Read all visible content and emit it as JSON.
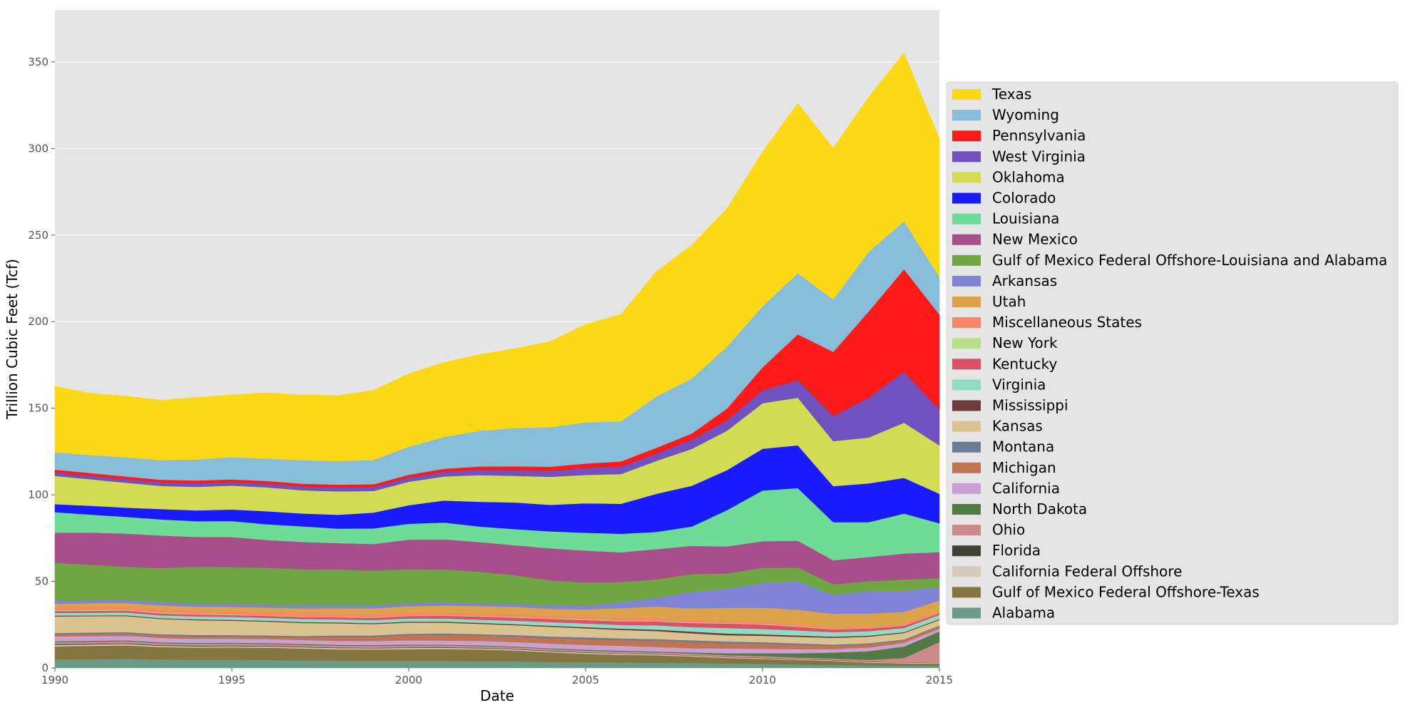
{
  "chart_data": {
    "type": "area",
    "stacked": true,
    "xlabel": "Date",
    "ylabel": "Trillion Cubic Feet (Tcf)",
    "xlim": [
      1990,
      2015
    ],
    "ylim": [
      0,
      380
    ],
    "x_ticks": [
      1990,
      1995,
      2000,
      2005,
      2010,
      2015
    ],
    "y_ticks": [
      0,
      50,
      100,
      150,
      200,
      250,
      300,
      350
    ],
    "grid": true,
    "legend_position": "right",
    "plot_background": "#e5e5e5",
    "legend_background": "#e5e5e5",
    "x": [
      1990,
      1991,
      1992,
      1993,
      1994,
      1995,
      1996,
      1997,
      1998,
      1999,
      2000,
      2001,
      2002,
      2003,
      2004,
      2005,
      2006,
      2007,
      2008,
      2009,
      2010,
      2011,
      2012,
      2013,
      2014,
      2015
    ],
    "series": [
      {
        "name": "Alabama",
        "color": "#6b9a86",
        "values": [
          4.9,
          5.1,
          5.3,
          4.9,
          4.8,
          4.8,
          4.7,
          4.5,
          4.3,
          4.2,
          4.2,
          4.1,
          3.9,
          3.8,
          3.5,
          3.3,
          3.1,
          3.0,
          2.9,
          2.6,
          2.4,
          2.1,
          1.8,
          1.5,
          1.3,
          1.2
        ]
      },
      {
        "name": "Gulf of Mexico Federal Offshore-Texas",
        "color": "#857540",
        "values": [
          7.6,
          7.7,
          7.8,
          7.2,
          7.0,
          7.1,
          7.0,
          6.8,
          6.5,
          6.5,
          6.7,
          6.9,
          6.8,
          6.3,
          5.6,
          4.9,
          4.6,
          4.3,
          3.8,
          3.2,
          2.9,
          2.6,
          2.3,
          1.6,
          1.4,
          1.3
        ]
      },
      {
        "name": "California Federal Offshore",
        "color": "#d3cbbb",
        "values": [
          0.8,
          0.8,
          0.8,
          0.7,
          0.7,
          0.7,
          0.7,
          0.7,
          0.7,
          0.7,
          0.7,
          0.7,
          0.7,
          0.6,
          0.6,
          0.6,
          0.6,
          0.5,
          0.5,
          0.5,
          0.5,
          0.4,
          0.4,
          0.4,
          0.4,
          0.4
        ]
      },
      {
        "name": "Florida",
        "color": "#3f4239",
        "values": [
          0.4,
          0.4,
          0.4,
          0.4,
          0.4,
          0.4,
          0.4,
          0.3,
          0.3,
          0.3,
          0.3,
          0.3,
          0.3,
          0.3,
          0.3,
          0.3,
          0.2,
          0.2,
          0.2,
          0.2,
          0.2,
          0.2,
          0.2,
          0.2,
          0.1,
          0.1
        ]
      },
      {
        "name": "Ohio",
        "color": "#cd8a8a",
        "values": [
          1.2,
          1.2,
          1.2,
          1.1,
          1.1,
          1.1,
          1.1,
          1.1,
          1.1,
          1.1,
          1.1,
          1.0,
          1.0,
          1.0,
          1.0,
          1.0,
          1.0,
          1.0,
          1.0,
          0.9,
          0.9,
          0.8,
          0.8,
          1.0,
          2.6,
          12.0
        ]
      },
      {
        "name": "North Dakota",
        "color": "#527a45",
        "values": [
          0.5,
          0.5,
          0.5,
          0.5,
          0.5,
          0.5,
          0.5,
          0.5,
          0.5,
          0.5,
          0.5,
          0.4,
          0.4,
          0.4,
          0.4,
          0.5,
          0.5,
          0.5,
          0.6,
          1.1,
          1.6,
          2.4,
          3.4,
          5.0,
          6.6,
          6.1
        ]
      },
      {
        "name": "California",
        "color": "#c9a0d3",
        "values": [
          2.8,
          2.7,
          2.6,
          2.5,
          2.4,
          2.3,
          2.3,
          2.3,
          2.2,
          2.3,
          2.5,
          2.4,
          2.5,
          2.6,
          2.7,
          2.7,
          2.8,
          2.6,
          2.4,
          2.8,
          2.6,
          2.4,
          2.0,
          2.1,
          2.1,
          1.6
        ]
      },
      {
        "name": "Michigan",
        "color": "#c27450",
        "values": [
          1.2,
          1.3,
          1.3,
          1.4,
          1.4,
          1.3,
          1.3,
          1.5,
          2.4,
          2.4,
          3.0,
          3.3,
          3.1,
          3.1,
          3.1,
          3.4,
          3.3,
          3.6,
          3.6,
          3.0,
          2.9,
          2.4,
          1.9,
          1.9,
          1.5,
          1.4
        ]
      },
      {
        "name": "Montana",
        "color": "#6c7a98",
        "values": [
          0.8,
          0.8,
          0.8,
          0.8,
          0.8,
          0.8,
          0.8,
          0.8,
          0.8,
          0.8,
          0.8,
          0.9,
          0.9,
          0.9,
          1.0,
          1.0,
          1.0,
          1.0,
          1.0,
          1.0,
          0.9,
          0.9,
          0.7,
          0.6,
          0.5,
          0.5
        ]
      },
      {
        "name": "Kansas",
        "color": "#d9c48f",
        "values": [
          9.6,
          9.4,
          9.3,
          8.8,
          8.5,
          8.3,
          8.0,
          7.5,
          7.0,
          6.6,
          6.4,
          6.2,
          5.9,
          5.7,
          5.6,
          5.2,
          4.9,
          4.6,
          4.0,
          3.6,
          3.7,
          3.8,
          3.9,
          3.8,
          3.7,
          3.2
        ]
      },
      {
        "name": "Mississippi",
        "color": "#703b3b",
        "values": [
          0.5,
          0.5,
          0.5,
          0.5,
          0.5,
          0.5,
          0.5,
          0.5,
          0.5,
          0.5,
          0.6,
          0.6,
          0.6,
          0.6,
          0.6,
          0.7,
          0.7,
          0.9,
          1.0,
          1.0,
          0.9,
          0.8,
          0.7,
          0.6,
          0.5,
          0.5
        ]
      },
      {
        "name": "Virginia",
        "color": "#8fdbc4",
        "values": [
          1.5,
          1.5,
          1.6,
          1.6,
          1.7,
          1.7,
          1.7,
          1.8,
          1.8,
          1.8,
          1.8,
          1.8,
          1.8,
          2.0,
          2.1,
          2.1,
          2.2,
          2.4,
          2.6,
          3.2,
          3.0,
          2.9,
          2.6,
          2.5,
          2.4,
          2.4
        ]
      },
      {
        "name": "Kentucky",
        "color": "#d9526a",
        "values": [
          1.1,
          1.1,
          1.1,
          1.1,
          1.1,
          1.1,
          1.1,
          1.2,
          1.2,
          1.3,
          1.5,
          1.6,
          1.8,
          1.8,
          1.9,
          2.0,
          2.1,
          2.3,
          2.4,
          2.6,
          2.6,
          2.1,
          1.6,
          1.6,
          1.3,
          1.0
        ]
      },
      {
        "name": "New York",
        "color": "#badd8b",
        "values": [
          0.4,
          0.4,
          0.4,
          0.4,
          0.4,
          0.3,
          0.3,
          0.3,
          0.3,
          0.3,
          0.3,
          0.3,
          0.3,
          0.3,
          0.3,
          0.4,
          0.4,
          0.4,
          0.4,
          0.3,
          0.3,
          0.3,
          0.2,
          0.2,
          0.2,
          0.1
        ]
      },
      {
        "name": "Miscellaneous States",
        "color": "#fb8765",
        "values": [
          2.2,
          2.1,
          2.0,
          2.0,
          1.9,
          1.9,
          1.9,
          1.8,
          1.8,
          1.7,
          1.7,
          1.7,
          1.6,
          1.6,
          1.5,
          1.4,
          1.4,
          1.3,
          1.2,
          1.2,
          1.1,
          1.0,
          0.9,
          0.8,
          0.8,
          0.7
        ]
      },
      {
        "name": "Utah",
        "color": "#dca34a",
        "values": [
          1.7,
          1.9,
          2.0,
          2.2,
          2.3,
          2.4,
          2.6,
          2.8,
          3.0,
          3.4,
          3.6,
          3.9,
          4.2,
          4.3,
          4.0,
          4.4,
          5.8,
          6.9,
          6.8,
          7.6,
          8.3,
          8.5,
          7.9,
          7.6,
          7.0,
          6.5
        ]
      },
      {
        "name": "Arkansas",
        "color": "#8184d6",
        "values": [
          1.7,
          1.7,
          1.7,
          1.7,
          1.7,
          1.6,
          1.6,
          1.6,
          1.6,
          1.6,
          1.6,
          1.6,
          1.6,
          1.7,
          1.8,
          2.0,
          3.2,
          5.0,
          9.5,
          11.0,
          14.2,
          16.4,
          10.9,
          13.0,
          12.2,
          7.6
        ]
      },
      {
        "name": "Gulf of Mexico Federal Offshore-Louisiana and Alabama",
        "color": "#6fa643",
        "values": [
          22.0,
          20.5,
          19.2,
          19.9,
          21.3,
          21.5,
          21.4,
          21.0,
          20.9,
          20.2,
          19.8,
          19.2,
          18.2,
          16.6,
          14.6,
          13.5,
          11.9,
          10.7,
          10.3,
          8.8,
          8.8,
          8.1,
          6.1,
          5.7,
          6.5,
          5.3
        ]
      },
      {
        "name": "New Mexico",
        "color": "#a84e8a",
        "values": [
          17.3,
          18.6,
          19.1,
          18.8,
          17.2,
          17.3,
          16.0,
          15.8,
          15.2,
          15.4,
          17.0,
          17.4,
          17.1,
          17.3,
          18.5,
          18.4,
          17.1,
          17.4,
          16.3,
          15.6,
          15.4,
          15.4,
          13.9,
          14.0,
          15.0,
          15.0
        ]
      },
      {
        "name": "Louisiana",
        "color": "#6edc97",
        "values": [
          11.8,
          10.4,
          9.7,
          9.3,
          9.1,
          9.3,
          9.1,
          9.0,
          8.4,
          9.0,
          9.2,
          9.7,
          9.0,
          9.3,
          9.8,
          10.3,
          10.7,
          10.0,
          11.2,
          21.0,
          29.3,
          30.4,
          22.0,
          20.1,
          23.1,
          16.7
        ]
      },
      {
        "name": "Colorado",
        "color": "#1a1aff",
        "values": [
          4.6,
          5.1,
          5.3,
          6.0,
          6.2,
          6.6,
          7.5,
          7.4,
          8.0,
          9.1,
          10.7,
          12.7,
          14.3,
          15.4,
          15.3,
          17.0,
          17.3,
          22.0,
          23.5,
          23.1,
          24.1,
          24.7,
          20.8,
          22.4,
          20.6,
          17.0
        ]
      },
      {
        "name": "Oklahoma",
        "color": "#d3db52",
        "values": [
          16.3,
          15.3,
          14.4,
          13.3,
          13.6,
          13.8,
          13.8,
          13.4,
          13.5,
          12.5,
          13.5,
          13.9,
          15.4,
          15.4,
          16.2,
          16.4,
          17.2,
          19.0,
          21.3,
          22.8,
          26.3,
          27.5,
          26.0,
          26.5,
          31.9,
          28.0
        ]
      },
      {
        "name": "West Virginia",
        "color": "#7150bf",
        "values": [
          2.0,
          2.0,
          2.0,
          2.1,
          2.1,
          2.0,
          2.1,
          2.2,
          2.3,
          2.3,
          2.5,
          2.7,
          3.0,
          3.1,
          3.4,
          4.0,
          4.3,
          4.2,
          5.3,
          5.9,
          7.5,
          10.0,
          14.6,
          23.0,
          29.4,
          20.6
        ]
      },
      {
        "name": "Pennsylvania",
        "color": "#ff1a1a",
        "values": [
          1.6,
          1.6,
          1.6,
          1.5,
          1.6,
          1.6,
          1.6,
          1.6,
          1.6,
          1.6,
          1.6,
          1.8,
          2.0,
          2.4,
          2.4,
          2.6,
          3.0,
          3.4,
          3.6,
          6.9,
          13.2,
          26.6,
          37.0,
          49.8,
          59.2,
          55.0
        ]
      },
      {
        "name": "Wyoming",
        "color": "#87bdd8",
        "values": [
          10.0,
          10.3,
          11.1,
          11.3,
          12.1,
          12.9,
          12.9,
          13.6,
          13.6,
          14.0,
          16.2,
          18.3,
          20.6,
          22.1,
          22.8,
          23.8,
          23.1,
          29.6,
          31.7,
          35.7,
          35.3,
          35.3,
          30.2,
          34.4,
          27.7,
          21.8
        ]
      },
      {
        "name": "Texas",
        "color": "#fcd816",
        "values": [
          38.1,
          35.7,
          35.3,
          34.6,
          35.8,
          35.9,
          38.0,
          37.6,
          37.8,
          40.2,
          42.1,
          43.0,
          44.0,
          45.8,
          49.5,
          56.5,
          61.8,
          72.1,
          77.0,
          79.8,
          89.0,
          98.1,
          87.4,
          89.3,
          97.2,
          79.6
        ]
      }
    ]
  }
}
